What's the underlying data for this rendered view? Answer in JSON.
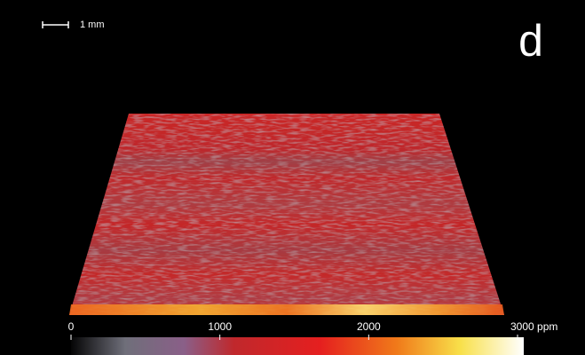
{
  "panel_label": "d",
  "scale_bar": {
    "label": "1 mm"
  },
  "colorbar": {
    "range": [
      0,
      3000
    ],
    "ticks": [
      0,
      1000,
      2000,
      {
        "value": 3000,
        "label": "3000 ppm"
      }
    ]
  }
}
